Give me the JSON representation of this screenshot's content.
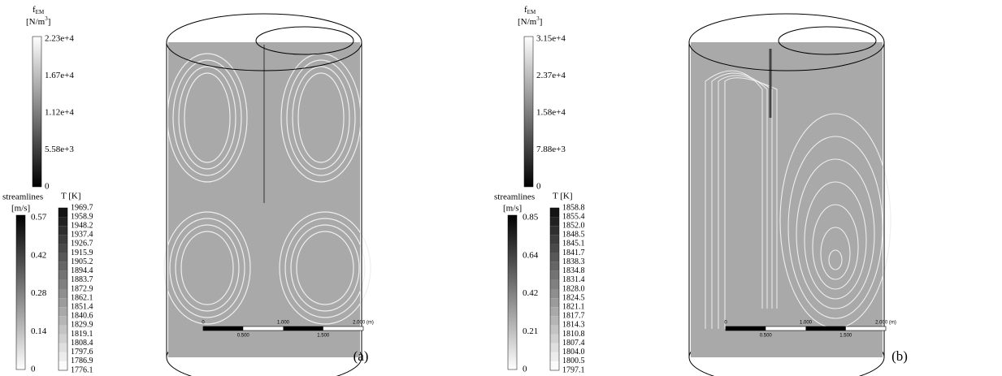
{
  "panels": [
    {
      "label": "(a)",
      "fem_legend": {
        "symbol": "f",
        "symbol_sub": "EM",
        "unit_start": "[N/m",
        "unit_sup": "3",
        "unit_end": "]",
        "ticks": [
          "2.23e+4",
          "1.67e+4",
          "1.12e+4",
          "5.58e+3",
          "0"
        ]
      },
      "streamlines_legend": {
        "title": "streamlines",
        "unit": "[m/s]",
        "ticks": [
          "0.57",
          "0.42",
          "0.28",
          "0.14",
          "0"
        ]
      },
      "temperature_legend": {
        "title": "T [K]",
        "ticks": [
          "1969.7",
          "1958.9",
          "1948.2",
          "1937.4",
          "1926.7",
          "1915.9",
          "1905.2",
          "1894.4",
          "1883.7",
          "1872.9",
          "1862.1",
          "1851.4",
          "1840.6",
          "1829.9",
          "1819.1",
          "1808.4",
          "1797.6",
          "1786.9",
          "1776.1"
        ]
      },
      "scale_bar": {
        "top": [
          "0",
          "1.000",
          "2.000 (m)"
        ],
        "bottom": [
          "0.500",
          "1.500"
        ]
      }
    },
    {
      "label": "(b)",
      "fem_legend": {
        "symbol": "f",
        "symbol_sub": "EM",
        "unit_start": "[N/m",
        "unit_sup": "3",
        "unit_end": "]",
        "ticks": [
          "3.15e+4",
          "2.37e+4",
          "1.58e+4",
          "7.88e+3",
          "0"
        ]
      },
      "streamlines_legend": {
        "title": "streamlines",
        "unit": "[m/s]",
        "ticks": [
          "0.85",
          "0.64",
          "0.42",
          "0.21",
          "0"
        ]
      },
      "temperature_legend": {
        "title": "T [K]",
        "ticks": [
          "1858.8",
          "1855.4",
          "1852.0",
          "1848.5",
          "1845.1",
          "1841.7",
          "1838.3",
          "1834.8",
          "1831.4",
          "1828.0",
          "1824.5",
          "1821.1",
          "1817.7",
          "1814.3",
          "1810.8",
          "1807.4",
          "1804.0",
          "1800.5",
          "1797.1"
        ]
      },
      "scale_bar": {
        "top": [
          "0",
          "1.000",
          "2.000 (m)"
        ],
        "bottom": [
          "0.500",
          "1.500"
        ]
      }
    }
  ]
}
